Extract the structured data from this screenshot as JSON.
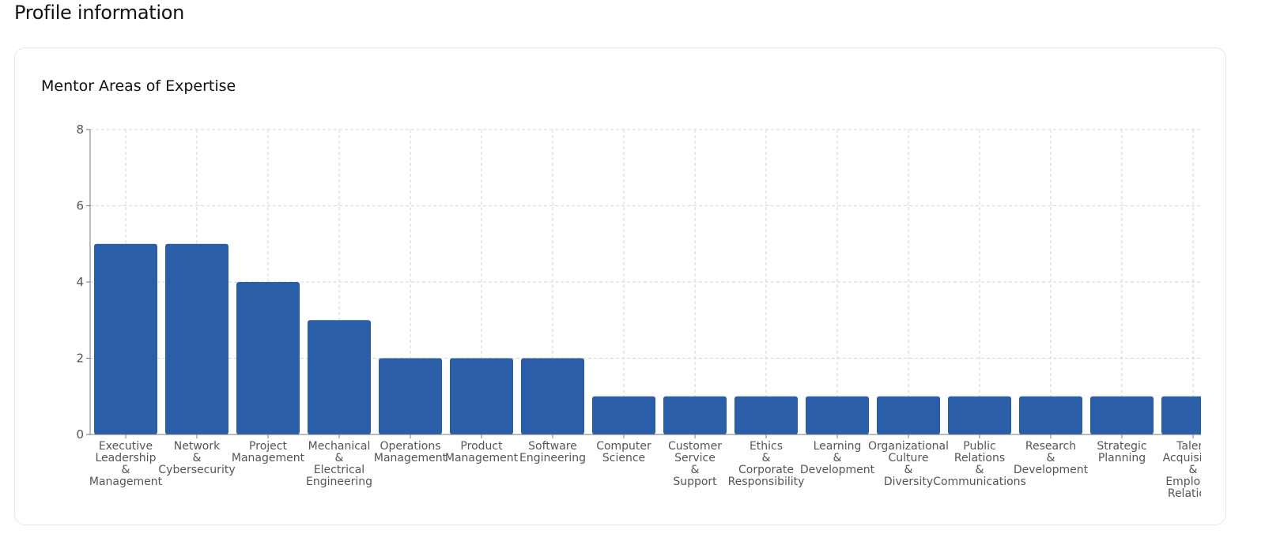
{
  "header": {
    "title": "Profile information"
  },
  "chart_data": {
    "type": "bar",
    "title": "Mentor Areas of Expertise",
    "xlabel": "",
    "ylabel": "",
    "ylim": [
      0,
      8
    ],
    "yticks": [
      0,
      2,
      4,
      6,
      8
    ],
    "grid": true,
    "color": "#2a5ea9",
    "categories": [
      [
        "Executive",
        "Leadership",
        "&",
        "Management"
      ],
      [
        "Network",
        "&",
        "Cybersecurity"
      ],
      [
        "Project",
        "Management"
      ],
      [
        "Mechanical",
        "&",
        "Electrical",
        "Engineering"
      ],
      [
        "Operations",
        "Management"
      ],
      [
        "Product",
        "Management"
      ],
      [
        "Software",
        "Engineering"
      ],
      [
        "Computer",
        "Science"
      ],
      [
        "Customer",
        "Service",
        "&",
        "Support"
      ],
      [
        "Ethics",
        "&",
        "Corporate",
        "Responsibility"
      ],
      [
        "Learning",
        "&",
        "Development"
      ],
      [
        "Organizational",
        "Culture",
        "&",
        "Diversity"
      ],
      [
        "Public",
        "Relations",
        "&",
        "Communications"
      ],
      [
        "Research",
        "&",
        "Development"
      ],
      [
        "Strategic",
        "Planning"
      ],
      [
        "Talent",
        "Acquisition",
        "&",
        "Employee",
        "Relations"
      ]
    ],
    "values": [
      5,
      5,
      4,
      3,
      2,
      2,
      2,
      1,
      1,
      1,
      1,
      1,
      1,
      1,
      1,
      1
    ]
  }
}
